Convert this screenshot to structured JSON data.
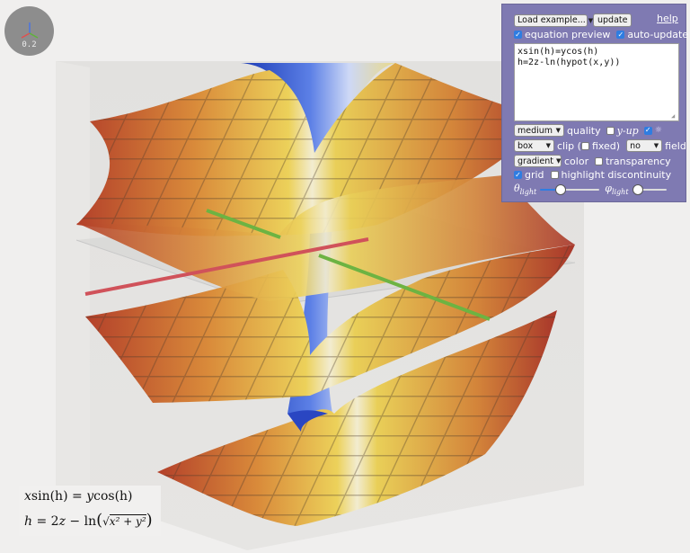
{
  "axis_widget": {
    "scale": "0.2",
    "colors": {
      "x": "#e05050",
      "y": "#5fb23a",
      "z": "#4a74e0"
    }
  },
  "panel": {
    "load_example": "Load example...",
    "update": "update",
    "help": "help",
    "equation_preview": {
      "label": "equation preview",
      "checked": true
    },
    "auto_update": {
      "label": "auto-update",
      "checked": true
    },
    "equation_lines": [
      "xsin(h)=ycos(h)",
      "h=2z-ln(hypot(x,y))"
    ],
    "quality": {
      "value": "medium",
      "label": "quality"
    },
    "y_up": {
      "label": "y-up",
      "checked": false
    },
    "light_toggle": {
      "label": "☼",
      "checked": true
    },
    "clip": {
      "value": "box",
      "label": "clip ("
    },
    "fixed": {
      "label": "fixed)",
      "checked": false
    },
    "field": {
      "value": "no",
      "label": "field"
    },
    "color": {
      "value": "gradient",
      "label": "color"
    },
    "transparency": {
      "label": "transparency",
      "checked": false
    },
    "grid": {
      "label": "grid",
      "checked": true
    },
    "highlight_discontinuity": {
      "label": "highlight discontinuity",
      "checked": false
    },
    "theta_light": {
      "symbol": "θ",
      "sub": "light",
      "value": 0.35
    },
    "phi_light": {
      "symbol": "φ",
      "sub": "light",
      "value": 0.0
    }
  },
  "equation_preview_box": {
    "line1": {
      "lhs_var": "x",
      "fn1": "sin",
      "arg1": "(h)",
      "eq": " = ",
      "rhs_var": "y",
      "fn2": "cos",
      "arg2": "(h)"
    },
    "line2": {
      "lhs": "h",
      "mid": " = 2",
      "z": "z",
      "minus": " − ",
      "fn": "ln",
      "inner": "x² + y²"
    }
  },
  "colors": {
    "panel_bg": "#7f7ab2",
    "accent": "#2f7de1",
    "surface_dark_red": "#b8442c",
    "surface_yellow": "#e8cc55",
    "surface_blue": "#3d5fd2"
  }
}
